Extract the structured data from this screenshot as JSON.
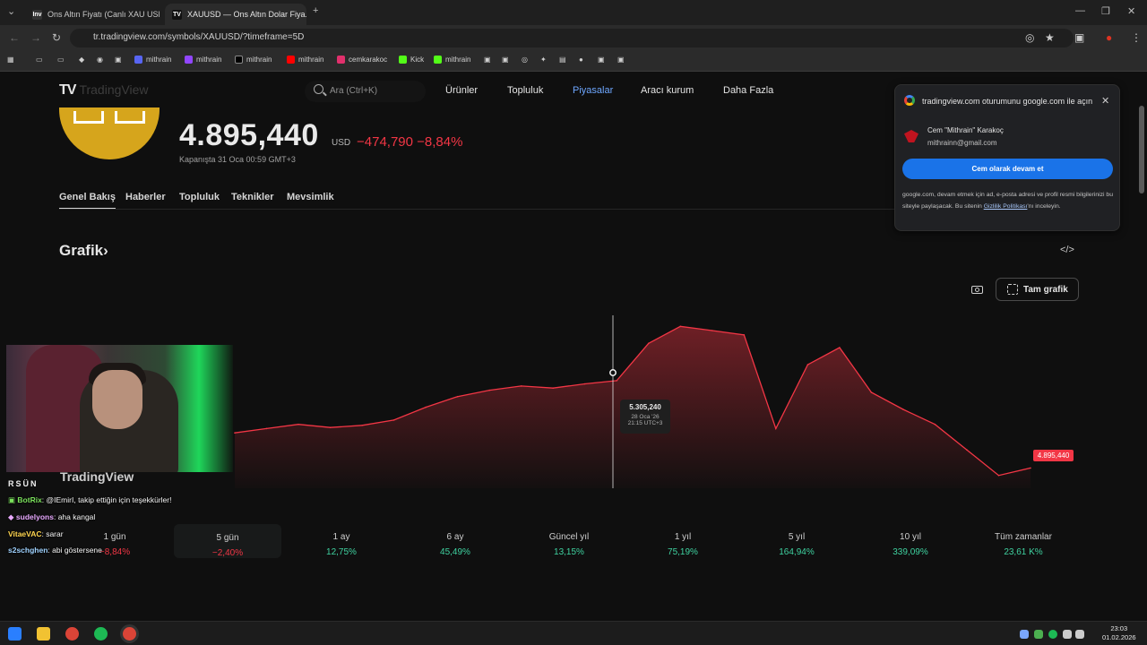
{
  "browser": {
    "tabs": [
      {
        "title": "Ons Altın Fiyatı (Canlı XAU USD...",
        "favicon": "Inv"
      },
      {
        "title": "XAUUSD — Ons Altın Dolar Fiya...",
        "favicon": "TV"
      }
    ],
    "url": "tr.tradingview.com/symbols/XAUUSD/?timeframe=5D",
    "bookmarks": [
      {
        "label": "mithrain",
        "color": "#5865f2"
      },
      {
        "label": "mithrain",
        "color": "#9146ff"
      },
      {
        "label": "mithrain",
        "color": "#111111"
      },
      {
        "label": "mithrain",
        "color": "#ff0000"
      },
      {
        "label": "cemkarakoc",
        "color": "#e1306c"
      },
      {
        "label": "Kick",
        "color": "#53fc18"
      },
      {
        "label": "mithrain",
        "color": "#53fc18"
      }
    ]
  },
  "header": {
    "logo": "TV",
    "logo_text": "TradingView",
    "search_placeholder": "Ara (Ctrl+K)",
    "nav": [
      "Ürünler",
      "Topluluk",
      "Piyasalar",
      "Aracı kurum",
      "Daha Fazla"
    ],
    "active_nav": "Piyasalar"
  },
  "symbol": {
    "price": "4.895,440",
    "currency": "USD",
    "change": "−474,790 −8,84%",
    "close_time": "Kapanışta 31 Oca 00:59 GMT+3",
    "change_color": "#f23645",
    "logo_color": "#d6a51c"
  },
  "subtabs": [
    "Genel Bakış",
    "Haberler",
    "Topluluk",
    "Teknikler",
    "Mevsimlik"
  ],
  "chart_section": {
    "title": "Grafik",
    "embed_label": "</>",
    "fullchart_label": "Tam grafik"
  },
  "chart_data": {
    "type": "area",
    "series_color": "#f23645",
    "last_value_label": "4.895,440",
    "tooltip": {
      "value": "5.305,240",
      "date": "28 Oca '26",
      "time": "21:15 UTC+3"
    },
    "points": [
      [
        "26 Oca 00:00",
        5060
      ],
      [
        "26 Oca 06:00",
        5080
      ],
      [
        "26 Oca 12:00",
        5100
      ],
      [
        "26 Oca 18:00",
        5085
      ],
      [
        "27 Oca 00:00",
        5095
      ],
      [
        "27 Oca 06:00",
        5120
      ],
      [
        "27 Oca 12:00",
        5180
      ],
      [
        "27 Oca 18:00",
        5230
      ],
      [
        "28 Oca 00:00",
        5260
      ],
      [
        "28 Oca 06:00",
        5280
      ],
      [
        "28 Oca 12:00",
        5270
      ],
      [
        "28 Oca 18:00",
        5290
      ],
      [
        "28 Oca 21:15",
        5305
      ],
      [
        "29 Oca 00:00",
        5480
      ],
      [
        "29 Oca 06:00",
        5560
      ],
      [
        "29 Oca 12:00",
        5540
      ],
      [
        "29 Oca 18:00",
        5520
      ],
      [
        "30 Oca 00:00",
        5080
      ],
      [
        "30 Oca 03:00",
        5380
      ],
      [
        "30 Oca 06:00",
        5460
      ],
      [
        "30 Oca 09:00",
        5250
      ],
      [
        "30 Oca 12:00",
        5170
      ],
      [
        "30 Oca 15:00",
        5100
      ],
      [
        "30 Oca 18:00",
        4980
      ],
      [
        "30 Oca 21:00",
        4860
      ],
      [
        "31 Oca 00:00",
        4895
      ]
    ]
  },
  "periods": [
    {
      "label": "1 gün",
      "value": "−8,84%"
    },
    {
      "label": "5 gün",
      "value": "−2,40%"
    },
    {
      "label": "1 ay",
      "value": "12,75%"
    },
    {
      "label": "6 ay",
      "value": "45,49%"
    },
    {
      "label": "Güncel yıl",
      "value": "13,15%"
    },
    {
      "label": "1 yıl",
      "value": "75,19%"
    },
    {
      "label": "5 yıl",
      "value": "164,94%"
    },
    {
      "label": "10 yıl",
      "value": "339,09%"
    },
    {
      "label": "Tüm zamanlar",
      "value": "23,61 K%"
    }
  ],
  "google_popup": {
    "title": "tradingview.com oturumunu google.com ile açın",
    "name": "Cem \"Mithrain\" Karakoç",
    "email": "mithrainn@gmail.com",
    "continue_label": "Cem olarak devam et",
    "info_text": "google.com, devam etmek için ad, e-posta adresi ve profil resmi bilgilerinizi bu siteyle paylaşacak. Bu sitenin ",
    "policy_link": "Gizlilik Politikası",
    "info_suffix": "'nı inceleyin."
  },
  "overlay": {
    "brand": "TradingView",
    "banner": "RSÜN",
    "chat": [
      {
        "user": "BotRix",
        "msg": ": @IEmirI, takip ettiğin için teşekkürler!",
        "color": "#7be15c"
      },
      {
        "user": "sudelyons",
        "msg": ": aha kangal",
        "color": "#e8a9ff"
      },
      {
        "user": "VitaeVAC",
        "msg": ": sarar",
        "color": "#ffd54f"
      },
      {
        "user": "s2schghen",
        "msg": ": abi göstersene",
        "color": "#9fd2ff"
      }
    ]
  },
  "taskbar": {
    "time": "23:03",
    "date": "01.02.2026"
  }
}
